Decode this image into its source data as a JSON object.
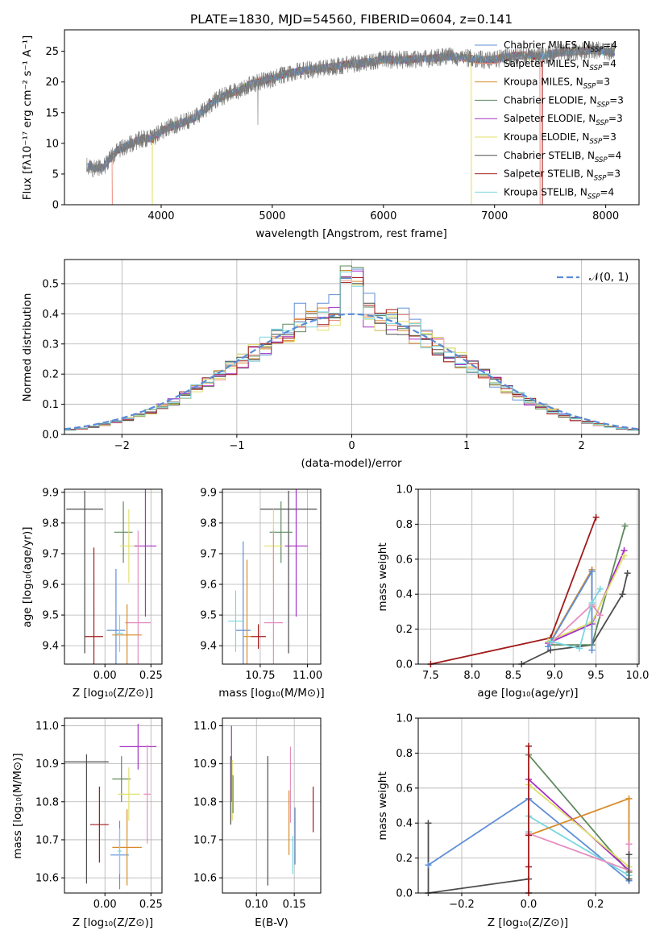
{
  "colors": {
    "chabrier_miles": "#5f8fd6",
    "salpeter_miles": "#ec8f7f",
    "kroupa_miles": "#d88b2a",
    "chabrier_elodie": "#5f8a5f",
    "salpeter_elodie": "#a52fc6",
    "kroupa_elodie": "#e0e06a",
    "chabrier_stelib": "#4d4d4d",
    "salpeter_stelib": "#a11a1a",
    "kroupa_stelib": "#7ad6e0",
    "pink": "#e58ec0",
    "gaussian": "#5b8bd6"
  },
  "chart_data": [
    {
      "id": "spectrum",
      "type": "line",
      "title": "PLATE=1830, MJD=54560, FIBERID=0604, z=0.141",
      "xlabel": "wavelength [Angstrom, rest frame]",
      "ylabel": "Flux [fλ10⁻¹⁷ erg cm⁻² s⁻¹ A⁻¹]",
      "xlim": [
        3130,
        8300
      ],
      "ylim": [
        0,
        28.5
      ],
      "xticks": [
        4000,
        5000,
        6000,
        7000,
        8000
      ],
      "yticks": [
        0,
        5,
        10,
        15,
        20,
        25
      ],
      "legend_position": "top-right",
      "series": [
        {
          "name": "Chabrier MILES, N_SSP=4",
          "color_key": "chabrier_miles"
        },
        {
          "name": "Salpeter MILES, N_SSP=4",
          "color_key": "salpeter_miles"
        },
        {
          "name": "Kroupa MILES, N_SSP=3",
          "color_key": "kroupa_miles"
        },
        {
          "name": "Chabrier ELODIE, N_SSP=3",
          "color_key": "chabrier_elodie"
        },
        {
          "name": "Salpeter ELODIE, N_SSP=3",
          "color_key": "salpeter_elodie"
        },
        {
          "name": "Kroupa ELODIE, N_SSP=3",
          "color_key": "kroupa_elodie"
        },
        {
          "name": "Chabrier STELIB, N_SSP=4",
          "color_key": "chabrier_stelib"
        },
        {
          "name": "Salpeter STELIB, N_SSP=3",
          "color_key": "salpeter_stelib"
        },
        {
          "name": "Kroupa STELIB, N_SSP=4",
          "color_key": "kroupa_stelib"
        }
      ],
      "data_x": [
        3330,
        3360,
        3420,
        3480,
        3540,
        3600,
        3680,
        3760,
        3840,
        3920,
        4000,
        4100,
        4200,
        4300,
        4400,
        4500,
        4600,
        4700,
        4800,
        4900,
        5000,
        5100,
        5200,
        5300,
        5400,
        5500,
        5600,
        5700,
        5800,
        5900,
        6000,
        6100,
        6200,
        6300,
        6400,
        6500,
        6600,
        6700,
        6800,
        6900,
        7000,
        7100,
        7200,
        7300,
        7400,
        7500,
        7600,
        7700,
        7800,
        7900,
        8000,
        8080
      ],
      "data_y": [
        6.3,
        6.0,
        5.9,
        6.1,
        7.5,
        8.8,
        9.5,
        10.2,
        10.8,
        10.8,
        12.0,
        12.8,
        13.4,
        14.2,
        15.6,
        17.2,
        18.0,
        18.6,
        19.6,
        20.1,
        20.5,
        21.2,
        21.6,
        21.9,
        22.1,
        22.4,
        22.6,
        22.9,
        23.1,
        23.3,
        23.7,
        23.6,
        23.6,
        23.8,
        23.8,
        24.0,
        24.2,
        24.0,
        23.8,
        23.6,
        23.7,
        24.0,
        24.3,
        24.3,
        24.2,
        24.6,
        24.8,
        24.9,
        25.1,
        25.2,
        25.0,
        24.9
      ],
      "drops": [
        {
          "x": 3560,
          "color_key": "salpeter_miles"
        },
        {
          "x": 3920,
          "color_key": "kroupa_elodie"
        },
        {
          "x": 6790,
          "color_key": "kroupa_elodie"
        },
        {
          "x": 7410,
          "color_key": "salpeter_miles"
        },
        {
          "x": 7430,
          "color_key": "salpeter_stelib"
        }
      ]
    },
    {
      "id": "residuals",
      "type": "line",
      "xlabel": "(data-model)/error",
      "ylabel": "Normed distribution",
      "xlim": [
        -2.5,
        2.5
      ],
      "ylim": [
        0,
        0.58
      ],
      "xticks": [
        -2,
        -1,
        0,
        1,
        2
      ],
      "yticks": [
        0.0,
        0.1,
        0.2,
        0.3,
        0.4,
        0.5
      ],
      "legend_position": "top-right",
      "gaussian_label": "𝒩(0, 1)",
      "bin_width": 0.1
    },
    {
      "id": "z_age",
      "type": "scatter",
      "xlabel": "Z [log₁₀(Z/Z⊙)]",
      "ylabel": "age  [log₁₀(age/yr)]",
      "xlim": [
        -0.22,
        0.31
      ],
      "ylim": [
        9.34,
        9.91
      ],
      "xticks": [
        0.0,
        0.25
      ],
      "yticks": [
        9.4,
        9.5,
        9.6,
        9.7,
        9.8,
        9.9
      ],
      "points": [
        {
          "x": -0.11,
          "y": 9.845,
          "xerr": 0.1,
          "yerr": 0.06,
          "yerr_low": 0.47,
          "color_key": "chabrier_stelib"
        },
        {
          "x": -0.06,
          "y": 9.43,
          "xerr": 0.05,
          "yerr": 0.29,
          "color_key": "salpeter_stelib"
        },
        {
          "x": 0.1,
          "y": 9.77,
          "xerr": 0.05,
          "yerr": 0.1,
          "color_key": "chabrier_elodie"
        },
        {
          "x": 0.13,
          "y": 9.725,
          "xerr": 0.05,
          "yerr": 0.12,
          "color_key": "kroupa_elodie"
        },
        {
          "x": 0.22,
          "y": 9.725,
          "xerr": 0.06,
          "yerr": 0.23,
          "color_key": "salpeter_elodie"
        },
        {
          "x": 0.06,
          "y": 9.45,
          "xerr": 0.05,
          "yerr": 0.2,
          "color_key": "chabrier_miles"
        },
        {
          "x": 0.18,
          "y": 9.475,
          "xerr": 0.07,
          "yerr": 0.3,
          "color_key": "pink"
        },
        {
          "x": 0.12,
          "y": 9.435,
          "xerr": 0.08,
          "yerr": 0.1,
          "color_key": "kroupa_miles"
        },
        {
          "x": 0.08,
          "y": 9.44,
          "xerr": 0.02,
          "yerr": 0.06,
          "color_key": "kroupa_stelib"
        }
      ]
    },
    {
      "id": "mass_age",
      "type": "scatter",
      "xlabel": "mass [log₁₀(M/M⊙)]",
      "xlim": [
        10.55,
        11.07
      ],
      "ylim": [
        9.34,
        9.91
      ],
      "xticks": [
        10.75,
        11.0
      ],
      "yticks": [
        9.4,
        9.5,
        9.6,
        9.7,
        9.8,
        9.9
      ],
      "points": [
        {
          "x": 10.9,
          "y": 9.845,
          "xerr": 0.15,
          "yerr": 0.06,
          "yerr_low": 0.47,
          "color_key": "chabrier_stelib"
        },
        {
          "x": 10.74,
          "y": 9.43,
          "xerr": 0.04,
          "yerr": 0.04,
          "color_key": "salpeter_stelib"
        },
        {
          "x": 10.86,
          "y": 9.77,
          "xerr": 0.06,
          "yerr": 0.1,
          "color_key": "chabrier_elodie"
        },
        {
          "x": 10.82,
          "y": 9.725,
          "xerr": 0.05,
          "yerr": 0.12,
          "color_key": "kroupa_elodie"
        },
        {
          "x": 10.94,
          "y": 9.725,
          "xerr": 0.06,
          "yerr": 0.23,
          "color_key": "salpeter_elodie"
        },
        {
          "x": 10.66,
          "y": 9.45,
          "xerr": 0.04,
          "yerr": 0.29,
          "color_key": "chabrier_miles"
        },
        {
          "x": 10.82,
          "y": 9.475,
          "xerr": 0.05,
          "yerr": 0.3,
          "color_key": "pink"
        },
        {
          "x": 10.68,
          "y": 9.43,
          "xerr": 0.02,
          "yerr": 0.25,
          "color_key": "kroupa_miles"
        },
        {
          "x": 10.62,
          "y": 9.48,
          "xerr": 0.04,
          "yerr": 0.1,
          "color_key": "kroupa_stelib"
        }
      ]
    },
    {
      "id": "age_weight",
      "type": "line",
      "xlabel": "age  [log₁₀(age/yr)]",
      "ylabel": "mass weight",
      "xlim": [
        7.35,
        10.02
      ],
      "ylim": [
        0,
        1.0
      ],
      "xticks": [
        7.5,
        8.0,
        8.5,
        9.0,
        9.5,
        10.0
      ],
      "yticks": [
        0.0,
        0.2,
        0.4,
        0.6,
        0.8,
        1.0
      ],
      "series": [
        {
          "color_key": "salpeter_stelib",
          "x": [
            7.5,
            8.95,
            9.5
          ],
          "y": [
            0.0,
            0.15,
            0.84
          ]
        },
        {
          "color_key": "chabrier_stelib",
          "x": [
            8.6,
            8.95,
            9.45,
            9.82,
            9.88
          ],
          "y": [
            0.0,
            0.08,
            0.11,
            0.4,
            0.52
          ]
        },
        {
          "color_key": "chabrier_elodie",
          "x": [
            8.95,
            9.45,
            9.85
          ],
          "y": [
            0.11,
            0.11,
            0.79
          ]
        },
        {
          "color_key": "salpeter_elodie",
          "x": [
            8.92,
            9.45,
            9.84
          ],
          "y": [
            0.12,
            0.23,
            0.65
          ]
        },
        {
          "color_key": "kroupa_elodie",
          "x": [
            8.92,
            9.45,
            9.84
          ],
          "y": [
            0.13,
            0.24,
            0.62
          ]
        },
        {
          "color_key": "kroupa_miles",
          "x": [
            8.95,
            9.45,
            9.45
          ],
          "y": [
            0.13,
            0.54,
            0.33
          ]
        },
        {
          "color_key": "chabrier_miles",
          "x": [
            8.92,
            9.45,
            9.45
          ],
          "y": [
            0.1,
            0.53,
            0.08
          ]
        },
        {
          "color_key": "pink",
          "x": [
            8.95,
            9.45,
            9.55
          ],
          "y": [
            0.12,
            0.34,
            0.28
          ]
        },
        {
          "color_key": "kroupa_stelib",
          "x": [
            8.95,
            9.3,
            9.45,
            9.55
          ],
          "y": [
            0.13,
            0.09,
            0.35,
            0.43
          ]
        }
      ]
    },
    {
      "id": "z_mass",
      "type": "scatter",
      "xlabel": "Z [log₁₀(Z/Z⊙)]",
      "ylabel": "mass [log₁₀(M/M⊙)]",
      "xlim": [
        -0.22,
        0.31
      ],
      "ylim": [
        10.56,
        11.02
      ],
      "xticks": [
        0.0,
        0.25
      ],
      "yticks": [
        10.6,
        10.7,
        10.8,
        10.9,
        11.0
      ],
      "points": [
        {
          "x": -0.1,
          "y": 10.905,
          "xerr": 0.12,
          "yerr": 0.02,
          "yerr_low": 0.32,
          "color_key": "chabrier_stelib"
        },
        {
          "x": -0.03,
          "y": 10.74,
          "xerr": 0.05,
          "yerr": 0.1,
          "color_key": "salpeter_stelib"
        },
        {
          "x": 0.09,
          "y": 10.86,
          "xerr": 0.05,
          "yerr": 0.06,
          "color_key": "chabrier_elodie"
        },
        {
          "x": 0.13,
          "y": 10.82,
          "xerr": 0.06,
          "yerr": 0.07,
          "color_key": "kroupa_elodie"
        },
        {
          "x": 0.18,
          "y": 10.945,
          "xerr": 0.1,
          "yerr": 0.06,
          "color_key": "salpeter_elodie"
        },
        {
          "x": 0.08,
          "y": 10.66,
          "xerr": 0.05,
          "yerr": 0.09,
          "color_key": "chabrier_miles"
        },
        {
          "x": 0.23,
          "y": 10.82,
          "xerr": 0.02,
          "yerr": 0.13,
          "color_key": "pink"
        },
        {
          "x": 0.12,
          "y": 10.68,
          "xerr": 0.08,
          "yerr": 0.1,
          "color_key": "kroupa_miles"
        },
        {
          "x": 0.08,
          "y": 10.67,
          "xerr": 0.01,
          "yerr": 0.06,
          "color_key": "kroupa_stelib"
        }
      ]
    },
    {
      "id": "ebv_mass",
      "type": "scatter",
      "xlabel": "E(B-V)",
      "xlim": [
        0.055,
        0.185
      ],
      "ylim": [
        10.56,
        11.02
      ],
      "xticks": [
        0.1,
        0.15
      ],
      "yticks": [
        10.6,
        10.7,
        10.8,
        10.9,
        11.0
      ],
      "points": [
        {
          "x": 0.066,
          "y": 10.83,
          "yerr": 0.09,
          "color_key": "chabrier_stelib"
        },
        {
          "x": 0.067,
          "y": 10.9,
          "yerr": 0.1,
          "color_key": "salpeter_elodie"
        },
        {
          "x": 0.068,
          "y": 10.83,
          "yerr": 0.08,
          "color_key": "kroupa_elodie"
        },
        {
          "x": 0.069,
          "y": 10.82,
          "yerr": 0.05,
          "color_key": "chabrier_elodie"
        },
        {
          "x": 0.115,
          "y": 10.75,
          "yerr": 0.17,
          "color_key": "chabrier_stelib"
        },
        {
          "x": 0.143,
          "y": 10.745,
          "yerr": 0.085,
          "color_key": "kroupa_miles"
        },
        {
          "x": 0.145,
          "y": 10.845,
          "yerr": 0.1,
          "color_key": "pink"
        },
        {
          "x": 0.148,
          "y": 10.66,
          "yerr": 0.05,
          "color_key": "kroupa_stelib"
        },
        {
          "x": 0.151,
          "y": 10.71,
          "yerr": 0.075,
          "color_key": "chabrier_miles"
        },
        {
          "x": 0.175,
          "y": 10.78,
          "yerr": 0.06,
          "color_key": "salpeter_stelib"
        }
      ]
    },
    {
      "id": "z_weight",
      "type": "line",
      "xlabel": "Z [log₁₀(Z/Z⊙)]",
      "ylabel": "mass weight",
      "xlim": [
        -0.33,
        0.33
      ],
      "ylim": [
        0,
        1.0
      ],
      "xticks": [
        -0.2,
        0.0,
        0.2
      ],
      "yticks": [
        0.0,
        0.2,
        0.4,
        0.6,
        0.8,
        1.0
      ],
      "series": [
        {
          "color_key": "chabrier_stelib",
          "x": [
            -0.3,
            -0.3,
            0.0
          ],
          "y": [
            0.4,
            0.0,
            0.08
          ]
        },
        {
          "color_key": "chabrier_miles",
          "x": [
            -0.3,
            0.0,
            0.3
          ],
          "y": [
            0.16,
            0.54,
            0.07
          ]
        },
        {
          "color_key": "kroupa_stelib",
          "x": [
            0.0,
            0.0,
            0.3
          ],
          "y": [
            0.35,
            0.44,
            0.1
          ]
        },
        {
          "color_key": "chabrier_elodie",
          "x": [
            0.0,
            0.3
          ],
          "y": [
            0.79,
            0.12
          ]
        },
        {
          "color_key": "salpeter_elodie",
          "x": [
            0.0,
            0.3
          ],
          "y": [
            0.65,
            0.13
          ]
        },
        {
          "color_key": "kroupa_elodie",
          "x": [
            0.0,
            0.3
          ],
          "y": [
            0.62,
            0.15
          ]
        },
        {
          "color_key": "kroupa_miles",
          "x": [
            0.0,
            0.3,
            0.3
          ],
          "y": [
            0.33,
            0.54,
            0.13
          ]
        },
        {
          "color_key": "pink",
          "x": [
            0.0,
            0.3,
            0.3
          ],
          "y": [
            0.34,
            0.13,
            0.28
          ]
        },
        {
          "color_key": "chabrier_stelib",
          "x": [
            0.3,
            0.3
          ],
          "y": [
            0.08,
            0.22
          ]
        },
        {
          "color_key": "salpeter_stelib",
          "x": [
            0.0,
            0.0,
            0.0,
            0.0
          ],
          "y": [
            0.0,
            0.15,
            0.33,
            0.84
          ]
        }
      ]
    }
  ]
}
